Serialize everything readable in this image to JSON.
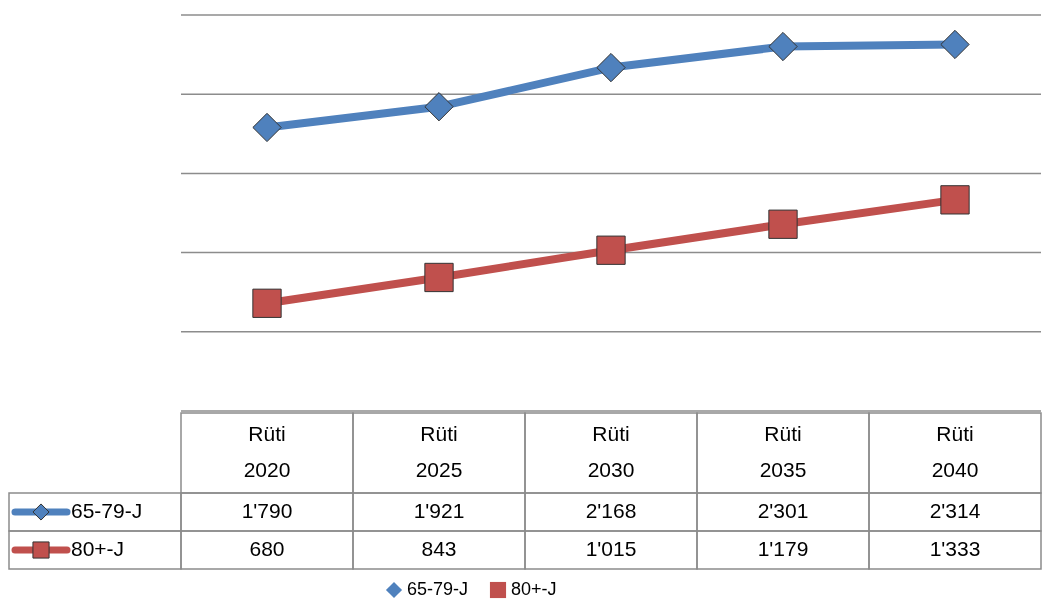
{
  "chart_data": {
    "type": "line",
    "categories": [
      "Rüti 2020",
      "Rüti 2025",
      "Rüti 2030",
      "Rüti 2035",
      "Rüti 2040"
    ],
    "series": [
      {
        "name": "65-79-J",
        "color": "#4f81bd",
        "marker": "diamond",
        "values": [
          1790,
          1921,
          2168,
          2301,
          2314
        ],
        "value_labels": [
          "1'790",
          "1'921",
          "2'168",
          "2'301",
          "2'314"
        ]
      },
      {
        "name": "80+-J",
        "color": "#c0504d",
        "marker": "square",
        "values": [
          680,
          843,
          1015,
          1179,
          1333
        ],
        "value_labels": [
          "680",
          "843",
          "1'015",
          "1'179",
          "1'333"
        ]
      }
    ],
    "ylim": [
      0,
      2500
    ],
    "yticks": [
      {
        "value": 0,
        "label": null
      },
      {
        "value": 500,
        "label": null
      },
      {
        "value": 1000,
        "label": null
      },
      {
        "value": 1500,
        "label": null
      },
      {
        "value": 2000,
        "label": null
      },
      {
        "value": 2500,
        "label": null
      }
    ],
    "tick_labels": false,
    "grid": "y",
    "legend": "bottom"
  }
}
